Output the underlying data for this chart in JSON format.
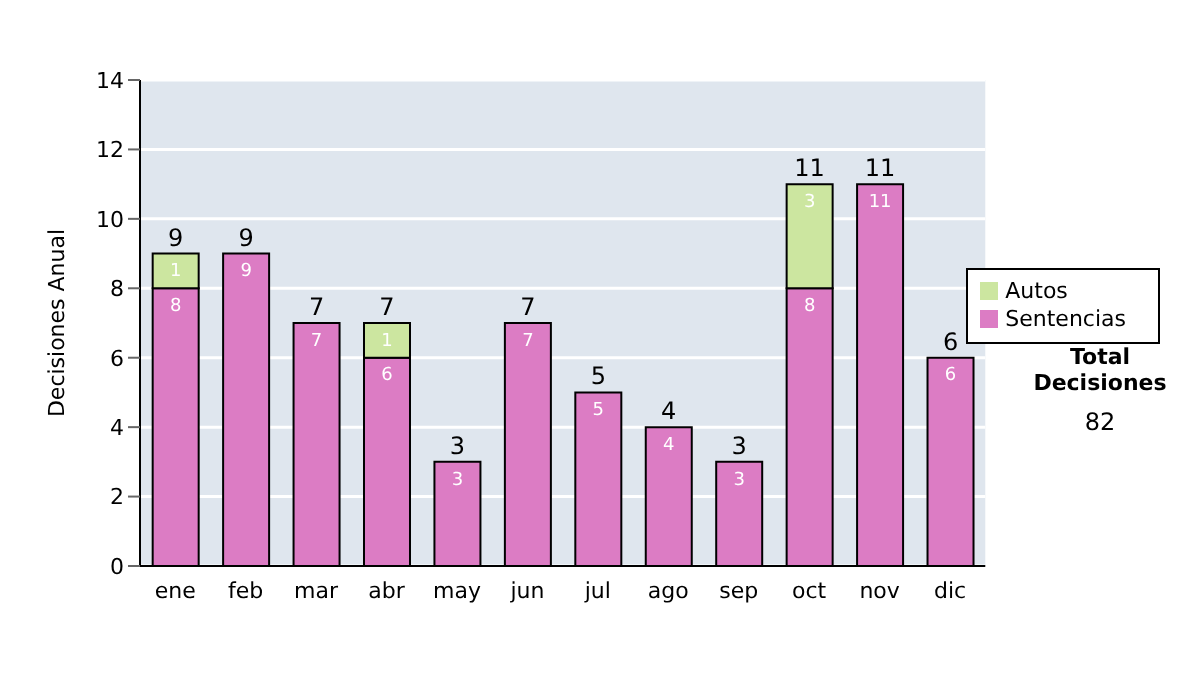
{
  "chart_data": {
    "type": "bar",
    "ylabel": "Decisiones Anual",
    "categories": [
      "ene",
      "feb",
      "mar",
      "abr",
      "may",
      "jun",
      "jul",
      "ago",
      "sep",
      "oct",
      "nov",
      "dic"
    ],
    "series": [
      {
        "name": "Sentencias",
        "color": "#dc7cc4",
        "values": [
          8,
          9,
          7,
          6,
          3,
          7,
          5,
          4,
          3,
          8,
          11,
          6
        ]
      },
      {
        "name": "Autos",
        "color": "#cce6a0",
        "values": [
          1,
          null,
          null,
          1,
          null,
          null,
          null,
          null,
          null,
          3,
          null,
          null
        ]
      }
    ],
    "stacked": true,
    "ylim": [
      0,
      14
    ],
    "yticks": [
      0,
      2,
      4,
      6,
      8,
      10,
      12,
      14
    ],
    "grid": "y",
    "legend": "right",
    "data_labels": true,
    "totals": [
      "9",
      "9",
      "7",
      "7",
      "3",
      "7",
      "5",
      "4",
      "3",
      "11",
      "11",
      "6"
    ],
    "annotations": [
      "Total Decisiones",
      "82"
    ]
  }
}
